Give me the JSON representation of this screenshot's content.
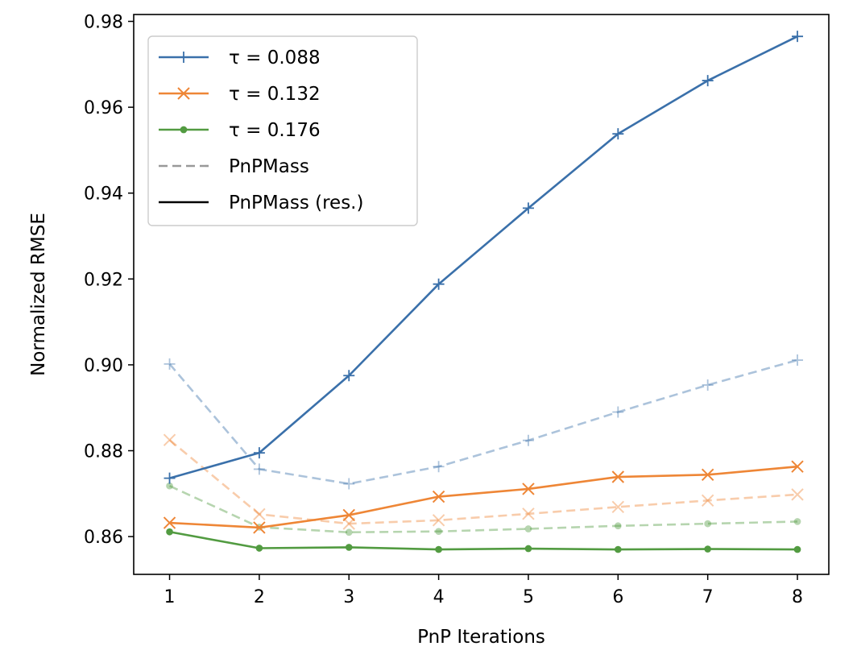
{
  "chart_data": {
    "type": "line",
    "title": "",
    "xlabel": "PnP Iterations",
    "ylabel": "Normalized RMSE",
    "x": [
      1,
      2,
      3,
      4,
      5,
      6,
      7,
      8
    ],
    "xticks": [
      "1",
      "2",
      "3",
      "4",
      "5",
      "6",
      "7",
      "8"
    ],
    "yticks": [
      "0.86",
      "0.88",
      "0.90",
      "0.92",
      "0.94",
      "0.96",
      "0.98"
    ],
    "xlim": [
      0.6,
      8.35
    ],
    "ylim": [
      0.8512,
      0.9816
    ],
    "grid": false,
    "legend_position": "top-left",
    "series": [
      {
        "name": "PnPMass (res.), τ = 0.088",
        "tau_index": 0,
        "style": "solid",
        "marker": "plus",
        "color": "#3a70aa",
        "values": [
          0.8736,
          0.8795,
          0.8975,
          0.9188,
          0.9365,
          0.9538,
          0.9662,
          0.9765
        ]
      },
      {
        "name": "PnPMass (res.), τ = 0.132",
        "tau_index": 1,
        "style": "solid",
        "marker": "x",
        "color": "#ee8636",
        "values": [
          0.8632,
          0.8621,
          0.865,
          0.8693,
          0.8711,
          0.8739,
          0.8744,
          0.8763
        ]
      },
      {
        "name": "PnPMass (res.), τ = 0.176",
        "tau_index": 2,
        "style": "solid",
        "marker": "dot",
        "color": "#529b41",
        "values": [
          0.8611,
          0.8573,
          0.8575,
          0.857,
          0.8572,
          0.857,
          0.8571,
          0.857
        ]
      },
      {
        "name": "PnPMass, τ = 0.088",
        "tau_index": 0,
        "style": "dashed",
        "marker": "plus",
        "color": "#3a70aa",
        "values": [
          0.9002,
          0.8757,
          0.8723,
          0.8763,
          0.8824,
          0.889,
          0.8953,
          0.9011
        ]
      },
      {
        "name": "PnPMass, τ = 0.132",
        "tau_index": 1,
        "style": "dashed",
        "marker": "x",
        "color": "#ee8636",
        "values": [
          0.8825,
          0.8652,
          0.863,
          0.8638,
          0.8653,
          0.8669,
          0.8684,
          0.8698
        ]
      },
      {
        "name": "PnPMass, τ = 0.176",
        "tau_index": 2,
        "style": "dashed",
        "marker": "dot",
        "color": "#529b41",
        "values": [
          0.8718,
          0.8622,
          0.861,
          0.8612,
          0.8618,
          0.8625,
          0.863,
          0.8635
        ]
      }
    ],
    "legend": [
      {
        "label": "τ = 0.088",
        "style": "solid",
        "marker": "plus",
        "color": "#3a70aa"
      },
      {
        "label": "τ = 0.132",
        "style": "solid",
        "marker": "x",
        "color": "#ee8636"
      },
      {
        "label": "τ = 0.176",
        "style": "solid",
        "marker": "dot",
        "color": "#529b41"
      },
      {
        "label": "PnPMass",
        "style": "dashed",
        "marker": "none",
        "color": "#999999"
      },
      {
        "label": "PnPMass (res.)",
        "style": "solid",
        "marker": "none",
        "color": "#000000"
      }
    ]
  }
}
